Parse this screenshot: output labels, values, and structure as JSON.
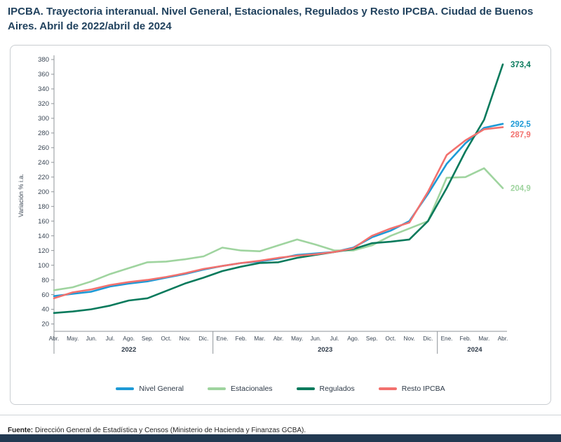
{
  "page": {
    "title": "IPCBA. Trayectoria interanual. Nivel General, Estacionales, Regulados y Resto IPCBA. Ciudad de Buenos Aires. Abril de 2022/abril de 2024"
  },
  "footer": {
    "source_label": "Fuente:",
    "source_text": " Dirección General de Estadística y Censos (Ministerio de Hacienda y Finanzas GCBA)."
  },
  "colors": {
    "title_text": "#21425e",
    "axis_text": "#3a4654",
    "axis_line": "#8f9499",
    "footer_bar": "#223a52"
  },
  "chart_data": {
    "type": "line",
    "title": "IPCBA. Trayectoria interanual. Nivel General, Estacionales, Regulados y Resto IPCBA. Ciudad de Buenos Aires. Abril de 2022/abril de 2024",
    "xlabel": "",
    "ylabel": "Variación % i.a.",
    "ylim": [
      10,
      380
    ],
    "yticks": [
      20,
      40,
      60,
      80,
      100,
      120,
      140,
      160,
      180,
      200,
      220,
      240,
      260,
      280,
      300,
      320,
      340,
      360,
      380
    ],
    "grid": false,
    "legend_position": "bottom",
    "x": [
      "Abr.",
      "May.",
      "Jun.",
      "Jul.",
      "Ago.",
      "Sep.",
      "Oct.",
      "Nov.",
      "Dic.",
      "Ene.",
      "Feb.",
      "Mar.",
      "Abr.",
      "May.",
      "Jun.",
      "Jul.",
      "Ago.",
      "Sep.",
      "Oct.",
      "Nov.",
      "Dic.",
      "Ene.",
      "Feb.",
      "Mar.",
      "Abr."
    ],
    "year_groups": [
      {
        "label": "2022",
        "start": 0,
        "end": 8
      },
      {
        "label": "2023",
        "start": 9,
        "end": 20
      },
      {
        "label": "2024",
        "start": 21,
        "end": 24
      }
    ],
    "series": [
      {
        "name": "Nivel General",
        "color": "#1e9ad6",
        "end_label": "292,5",
        "values": [
          58,
          61,
          64,
          71,
          75,
          78,
          83,
          88,
          94,
          99,
          103,
          105,
          109,
          114,
          116,
          118,
          124,
          138,
          147,
          160,
          197,
          238,
          266,
          287,
          292.5
        ]
      },
      {
        "name": "Estacionales",
        "color": "#9fd49f",
        "end_label": "204,9",
        "values": [
          66,
          70,
          78,
          88,
          96,
          104,
          105,
          108,
          112,
          124,
          120,
          119,
          127,
          135,
          128,
          120,
          120,
          127,
          140,
          150,
          160,
          219,
          220,
          232,
          204.9
        ]
      },
      {
        "name": "Regulados",
        "color": "#087a5c",
        "end_label": "373,4",
        "values": [
          35,
          37,
          40,
          45,
          52,
          55,
          65,
          75,
          83,
          92,
          98,
          103,
          104,
          110,
          114,
          118,
          122,
          130,
          132,
          135,
          160,
          205,
          255,
          298,
          373.4
        ]
      },
      {
        "name": "Resto IPCBA",
        "color": "#f2716e",
        "end_label": "287,9",
        "values": [
          55,
          63,
          67,
          73,
          77,
          80,
          84,
          89,
          95,
          99,
          103,
          106,
          110,
          113,
          115,
          118,
          123,
          140,
          150,
          158,
          200,
          250,
          270,
          285,
          287.9
        ]
      }
    ]
  }
}
